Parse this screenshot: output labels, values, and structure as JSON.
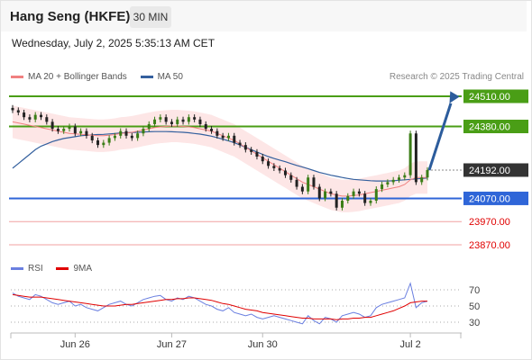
{
  "header": {
    "title": "Hang Seng (HKFE)",
    "timeframe": "30 MIN"
  },
  "date_line": "Wednesday, July 2, 2025 5:35:13 AM CET",
  "credit": "Research © 2025 Trading Central",
  "colors": {
    "resistance": "#4a9e16",
    "support": "#2f66d8",
    "target_line": "#f0a0a0",
    "bollinger": "#fde6e6",
    "ma20": "#f08080",
    "ma50": "#34609e",
    "up_candle": "#3a7d16",
    "down_candle": "#222222",
    "arrow": "#2c5c9c",
    "rsi": "#6a7fe0",
    "rsi_ma": "#e00000"
  },
  "chart_data": [
    {
      "type": "candlestick",
      "legend": [
        {
          "label": "MA 20 + Bollinger Bands",
          "color": "#f08080"
        },
        {
          "label": "MA 50",
          "color": "#34609e"
        }
      ],
      "ylim": [
        23810,
        24640
      ],
      "price_levels": [
        {
          "value": 24510,
          "label": "24510.00",
          "kind": "resistance"
        },
        {
          "value": 24380,
          "label": "24380.00",
          "kind": "resistance"
        },
        {
          "value": 24192,
          "label": "24192.00",
          "kind": "last"
        },
        {
          "value": 24070,
          "label": "24070.00",
          "kind": "support"
        },
        {
          "value": 23970,
          "label": "23970.00",
          "kind": "target"
        },
        {
          "value": 23870,
          "label": "23870.00",
          "kind": "target"
        }
      ],
      "x_ticks": [
        {
          "label": "Jun 26",
          "index": 11
        },
        {
          "label": "Jun 27",
          "index": 28
        },
        {
          "label": "Jun 30",
          "index": 44
        },
        {
          "label": "Jul 2",
          "index": 70
        }
      ],
      "x_count": 74,
      "series_close": [
        24450,
        24440,
        24420,
        24410,
        24430,
        24420,
        24400,
        24370,
        24360,
        24370,
        24380,
        24350,
        24360,
        24340,
        24320,
        24300,
        24310,
        24330,
        24340,
        24360,
        24340,
        24330,
        24350,
        24370,
        24390,
        24410,
        24420,
        24400,
        24390,
        24410,
        24400,
        24420,
        24410,
        24390,
        24370,
        24360,
        24340,
        24330,
        24340,
        24310,
        24300,
        24280,
        24270,
        24250,
        24230,
        24210,
        24200,
        24190,
        24170,
        24150,
        24120,
        24100,
        24160,
        24120,
        24070,
        24100,
        24090,
        24030,
        24060,
        24080,
        24100,
        24090,
        24050,
        24060,
        24110,
        24130,
        24140,
        24150,
        24160,
        24170,
        24350,
        24140,
        24160,
        24192
      ],
      "series_ma20": [
        24400,
        24395,
        24390,
        24385,
        24380,
        24375,
        24370,
        24365,
        24360,
        24355,
        24350,
        24348,
        24346,
        24344,
        24342,
        24340,
        24340,
        24342,
        24345,
        24350,
        24352,
        24355,
        24360,
        24365,
        24370,
        24375,
        24378,
        24380,
        24382,
        24382,
        24380,
        24378,
        24375,
        24370,
        24365,
        24360,
        24350,
        24340,
        24330,
        24320,
        24305,
        24290,
        24275,
        24260,
        24245,
        24230,
        24215,
        24200,
        24185,
        24170,
        24155,
        24140,
        24130,
        24120,
        24110,
        24100,
        24090,
        24085,
        24080,
        24080,
        24082,
        24085,
        24090,
        24095,
        24100,
        24105,
        24110,
        24115,
        24120,
        24130,
        24150,
        24160,
        24160,
        24160
      ],
      "series_ma50": [
        24200,
        24220,
        24240,
        24260,
        24280,
        24295,
        24305,
        24315,
        24322,
        24328,
        24332,
        24336,
        24340,
        24342,
        24344,
        24345,
        24346,
        24348,
        24350,
        24352,
        24353,
        24354,
        24355,
        24356,
        24357,
        24358,
        24358,
        24358,
        24357,
        24356,
        24355,
        24353,
        24350,
        24347,
        24343,
        24338,
        24332,
        24325,
        24318,
        24310,
        24300,
        24290,
        24280,
        24270,
        24260,
        24250,
        24242,
        24235,
        24228,
        24220,
        24212,
        24205,
        24198,
        24190,
        24182,
        24176,
        24170,
        24165,
        24160,
        24156,
        24152,
        24150,
        24148,
        24146,
        24145,
        24145,
        24145,
        24146,
        24148,
        24150,
        24152,
        24154,
        24156,
        24158
      ]
    },
    {
      "type": "line",
      "legend": [
        {
          "label": "RSI",
          "color": "#6a7fe0"
        },
        {
          "label": "9MA",
          "color": "#e00000"
        }
      ],
      "ylim": [
        20,
        80
      ],
      "y_ticks": [
        {
          "value": 70,
          "label": "70"
        },
        {
          "value": 50,
          "label": "50"
        },
        {
          "value": 30,
          "label": "30"
        }
      ],
      "series_rsi": [
        66,
        62,
        60,
        58,
        64,
        62,
        58,
        54,
        52,
        54,
        56,
        50,
        52,
        48,
        46,
        44,
        48,
        52,
        54,
        56,
        52,
        50,
        54,
        58,
        60,
        62,
        63,
        58,
        56,
        60,
        58,
        62,
        60,
        56,
        52,
        50,
        46,
        44,
        48,
        42,
        40,
        38,
        40,
        36,
        34,
        36,
        38,
        36,
        34,
        32,
        30,
        28,
        38,
        32,
        28,
        36,
        34,
        30,
        38,
        40,
        42,
        40,
        36,
        38,
        48,
        52,
        54,
        56,
        58,
        60,
        78,
        48,
        54,
        56
      ],
      "series_rsi_ma": [
        64,
        63,
        62,
        61,
        61,
        61,
        60,
        59,
        58,
        57,
        56,
        55,
        54,
        53,
        52,
        51,
        50,
        50,
        50,
        51,
        52,
        52,
        53,
        54,
        55,
        56,
        57,
        58,
        58,
        59,
        59,
        60,
        60,
        59,
        58,
        57,
        55,
        53,
        52,
        50,
        48,
        46,
        45,
        44,
        42,
        41,
        40,
        39,
        38,
        37,
        36,
        35,
        35,
        34,
        34,
        34,
        34,
        33,
        34,
        34,
        35,
        35,
        36,
        36,
        38,
        40,
        42,
        44,
        47,
        50,
        54,
        55,
        56,
        56
      ]
    }
  ]
}
